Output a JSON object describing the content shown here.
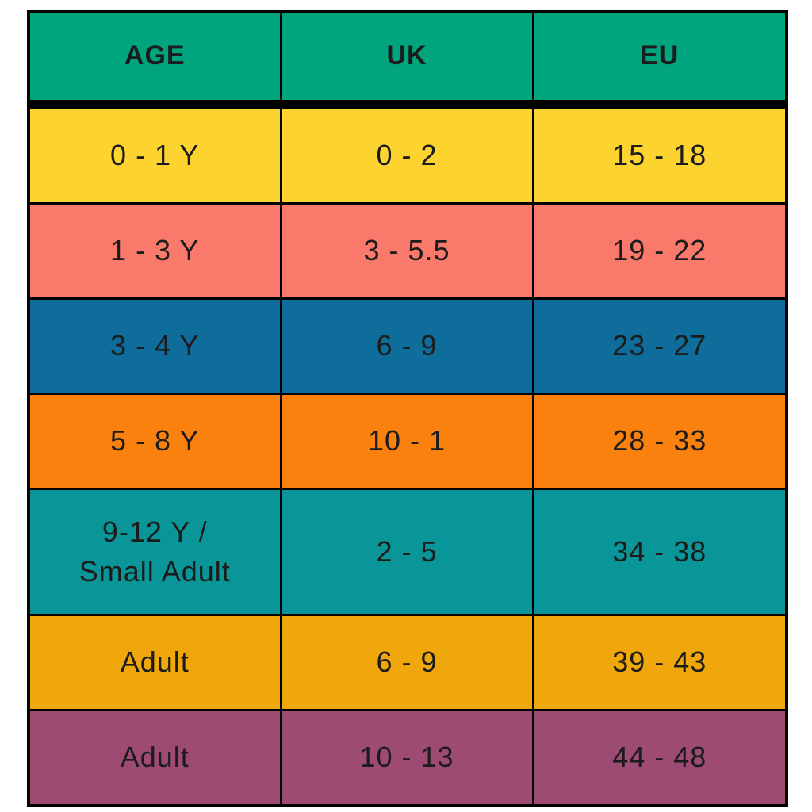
{
  "chart_data": {
    "type": "table",
    "columns": [
      "AGE",
      "UK",
      "EU"
    ],
    "rows": [
      [
        "0 - 1 Y",
        "0 - 2",
        "15 - 18"
      ],
      [
        "1 - 3 Y",
        "3 - 5.5",
        "19 - 22"
      ],
      [
        "3 - 4 Y",
        "6 - 9",
        "23 - 27"
      ],
      [
        "5 - 8 Y",
        "10 - 1",
        "28 - 33"
      ],
      [
        "9-12 Y /\nSmall Adult",
        "2 - 5",
        "34 - 38"
      ],
      [
        "Adult",
        "6 - 9",
        "39 - 43"
      ],
      [
        "Adult",
        "10 - 13",
        "44 - 48"
      ]
    ]
  },
  "style": {
    "page_bg": "#FFFFFF",
    "header_bg": "#00A57E",
    "row_bgs": [
      "#FDD330",
      "#F97A6B",
      "#0E6D9B",
      "#FA810E",
      "#0A9598",
      "#F0A70C",
      "#9D4B72"
    ],
    "border_color": "#000000",
    "text_color": "#1C1C1C"
  }
}
